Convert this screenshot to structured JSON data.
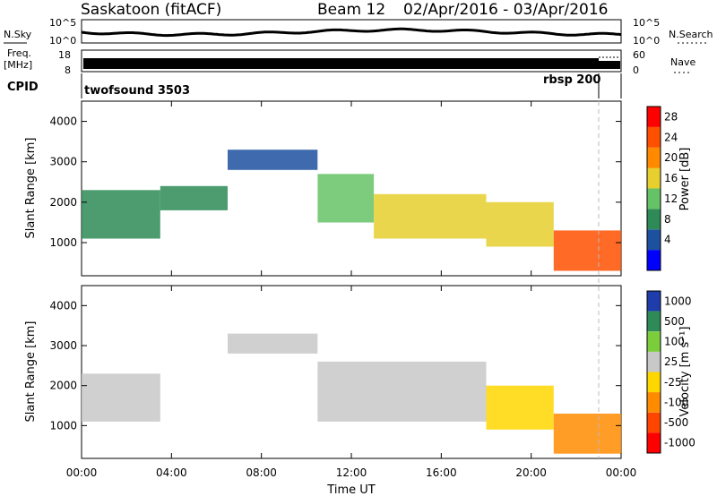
{
  "header": {
    "station": "Saskatoon (fitACF)",
    "beam": "Beam 12",
    "date_range": "02/Apr/2016 - 03/Apr/2016"
  },
  "strip_panels": {
    "nsky_label": "N.Sky",
    "nsky_ticks": [
      "10^5",
      "10^0"
    ],
    "nsearch_label": "N.Search",
    "nsearch_ticks": [
      "10^5",
      "10^0"
    ],
    "freq_label_1": "Freq.",
    "freq_label_2": "[MHz]",
    "freq_ticks": [
      "18",
      "8"
    ],
    "nave_label": "Nave",
    "nave_ticks": [
      "60",
      "0"
    ],
    "cpid_label": "CPID",
    "cpid_programs": [
      "twofsound 3503",
      "rbsp 200"
    ]
  },
  "chart_data": [
    {
      "type": "heatmap",
      "name": "power",
      "ylabel": "Slant Range [km]",
      "yticks": [
        "4000",
        "3000",
        "2000",
        "1000"
      ],
      "colorbar_label": "Power [dB]",
      "colorbar_ticks": [
        "28",
        "24",
        "20",
        "16",
        "12",
        "8",
        "4"
      ],
      "colors": [
        "#0000ff",
        "#1e50a0",
        "#2e8b57",
        "#66c266",
        "#e6cf2e",
        "#ff8a00",
        "#ff5000",
        "#ff0000"
      ],
      "xlim": [
        "00:00",
        "00:00"
      ],
      "ylim": [
        180,
        4500
      ],
      "regions": [
        {
          "t0": 0.0,
          "t1": 3.5,
          "r0": 1100,
          "r1": 2300,
          "db": 10
        },
        {
          "t0": 3.5,
          "t1": 6.5,
          "r0": 1800,
          "r1": 2400,
          "db": 9
        },
        {
          "t0": 6.5,
          "t1": 10.5,
          "r0": 2800,
          "r1": 3300,
          "db": 6
        },
        {
          "t0": 10.5,
          "t1": 13.0,
          "r0": 1500,
          "r1": 2700,
          "db": 14
        },
        {
          "t0": 13.0,
          "t1": 18.0,
          "r0": 1100,
          "r1": 2200,
          "db": 18
        },
        {
          "t0": 18.0,
          "t1": 21.0,
          "r0": 900,
          "r1": 2000,
          "db": 16
        },
        {
          "t0": 21.0,
          "t1": 24.0,
          "r0": 300,
          "r1": 1300,
          "db": 26
        }
      ]
    },
    {
      "type": "heatmap",
      "name": "velocity",
      "ylabel": "Slant Range [km]",
      "yticks": [
        "4000",
        "3000",
        "2000",
        "1000"
      ],
      "colorbar_label": "Velocity [m s⁻¹]",
      "colorbar_ticks": [
        "1000",
        "500",
        "100",
        "25",
        "-25",
        "-100",
        "-500",
        "-1000"
      ],
      "colors": [
        "#1e3caa",
        "#2e8b57",
        "#7ccd3c",
        "#c8c8c8",
        "#ffd700",
        "#ff8c00",
        "#ff4500",
        "#ff0000"
      ],
      "xlabel": "Time UT",
      "xticks": [
        "00:00",
        "04:00",
        "08:00",
        "12:00",
        "16:00",
        "20:00",
        "00:00"
      ],
      "xlim": [
        "00:00",
        "00:00"
      ],
      "ylim": [
        180,
        4500
      ],
      "regions": [
        {
          "t0": 0.0,
          "t1": 3.5,
          "r0": 1100,
          "r1": 2300,
          "v": 0
        },
        {
          "t0": 6.5,
          "t1": 10.5,
          "r0": 2800,
          "r1": 3300,
          "v": 0
        },
        {
          "t0": 10.5,
          "t1": 18.0,
          "r0": 1100,
          "r1": 2600,
          "v": 0
        },
        {
          "t0": 18.0,
          "t1": 21.0,
          "r0": 900,
          "r1": 2000,
          "v": -50
        },
        {
          "t0": 21.0,
          "t1": 24.0,
          "r0": 300,
          "r1": 1300,
          "v": -200
        }
      ]
    }
  ]
}
